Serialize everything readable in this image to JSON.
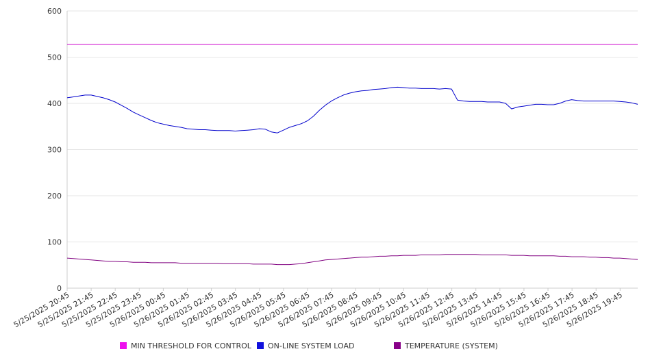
{
  "chart_data": {
    "type": "line",
    "title": "",
    "xlabel": "",
    "ylabel": "",
    "ylim": [
      0,
      600
    ],
    "yticks": [
      0,
      100,
      200,
      300,
      400,
      500,
      600
    ],
    "x_ticks": [
      "5/25/2025 20:45",
      "5/25/2025 21:45",
      "5/25/2025 22:45",
      "5/25/2025 23:45",
      "5/26/2025 00:45",
      "5/26/2025 01:45",
      "5/26/2025 02:45",
      "5/26/2025 03:45",
      "5/26/2025 04:45",
      "5/26/2025 05:45",
      "5/26/2025 06:45",
      "5/26/2025 07:45",
      "5/26/2025 08:45",
      "5/26/2025 09:45",
      "5/26/2025 10:45",
      "5/26/2025 11:45",
      "5/26/2025 12:45",
      "5/26/2025 13:45",
      "5/26/2025 14:45",
      "5/26/2025 15:45",
      "5/26/2025 16:45",
      "5/26/2025 17:45",
      "5/26/2025 18:45",
      "5/26/2025 19:45"
    ],
    "x": [
      "20:45",
      "21:00",
      "21:15",
      "21:30",
      "21:45",
      "22:00",
      "22:15",
      "22:30",
      "22:45",
      "23:00",
      "23:15",
      "23:30",
      "23:45",
      "00:00",
      "00:15",
      "00:30",
      "00:45",
      "01:00",
      "01:15",
      "01:30",
      "01:45",
      "02:00",
      "02:15",
      "02:30",
      "02:45",
      "03:00",
      "03:15",
      "03:30",
      "03:45",
      "04:00",
      "04:15",
      "04:30",
      "04:45",
      "05:00",
      "05:15",
      "05:30",
      "05:45",
      "06:00",
      "06:15",
      "06:30",
      "06:45",
      "07:00",
      "07:15",
      "07:30",
      "07:45",
      "08:00",
      "08:15",
      "08:30",
      "08:45",
      "09:00",
      "09:15",
      "09:30",
      "09:45",
      "10:00",
      "10:15",
      "10:30",
      "10:45",
      "11:00",
      "11:15",
      "11:30",
      "11:45",
      "12:00",
      "12:15",
      "12:30",
      "12:45",
      "13:00",
      "13:15",
      "13:30",
      "13:45",
      "14:00",
      "14:15",
      "14:30",
      "14:45",
      "15:00",
      "15:15",
      "15:30",
      "15:45",
      "16:00",
      "16:15",
      "16:30",
      "16:45",
      "17:00",
      "17:15",
      "17:30",
      "17:45",
      "18:00",
      "18:15",
      "18:30",
      "18:45",
      "19:00",
      "19:15",
      "19:30",
      "19:45",
      "20:00",
      "20:15",
      "20:30"
    ],
    "series": [
      {
        "name": "MIN THRESHOLD FOR CONTROL",
        "color": "#cc00cc",
        "values": [
          528,
          528,
          528,
          528,
          528,
          528,
          528,
          528,
          528,
          528,
          528,
          528,
          528,
          528,
          528,
          528,
          528,
          528,
          528,
          528,
          528,
          528,
          528,
          528,
          528,
          528,
          528,
          528,
          528,
          528,
          528,
          528,
          528,
          528,
          528,
          528,
          528,
          528,
          528,
          528,
          528,
          528,
          528,
          528,
          528,
          528,
          528,
          528,
          528,
          528,
          528,
          528,
          528,
          528,
          528,
          528,
          528,
          528,
          528,
          528,
          528,
          528,
          528,
          528,
          528,
          528,
          528,
          528,
          528,
          528,
          528,
          528,
          528,
          528,
          528,
          528,
          528,
          528,
          528,
          528,
          528,
          528,
          528,
          528,
          528,
          528,
          528,
          528,
          528,
          528,
          528,
          528,
          528,
          528,
          528,
          528
        ]
      },
      {
        "name": "ON-LINE SYSTEM LOAD",
        "color": "#0000cc",
        "values": [
          412,
          414,
          416,
          418,
          418,
          415,
          412,
          408,
          403,
          396,
          389,
          381,
          375,
          369,
          363,
          358,
          355,
          352,
          350,
          348,
          345,
          344,
          343,
          343,
          342,
          341,
          341,
          341,
          340,
          341,
          342,
          343,
          345,
          344,
          338,
          336,
          342,
          348,
          352,
          356,
          362,
          372,
          385,
          396,
          405,
          412,
          418,
          422,
          425,
          427,
          428,
          430,
          431,
          432,
          434,
          435,
          434,
          433,
          433,
          432,
          432,
          432,
          431,
          432,
          431,
          407,
          405,
          404,
          404,
          404,
          403,
          403,
          403,
          400,
          388,
          392,
          394,
          396,
          398,
          398,
          397,
          397,
          400,
          405,
          408,
          406,
          405,
          405,
          405,
          405,
          405,
          405,
          404,
          403,
          401,
          398
        ]
      },
      {
        "name": "TEMPERATURE (SYSTEM)",
        "color": "#800080",
        "values": [
          65,
          64,
          63,
          62,
          61,
          60,
          59,
          58,
          58,
          57,
          57,
          56,
          56,
          56,
          55,
          55,
          55,
          55,
          55,
          54,
          54,
          54,
          54,
          54,
          54,
          54,
          53,
          53,
          53,
          53,
          53,
          52,
          52,
          52,
          52,
          51,
          51,
          51,
          52,
          53,
          55,
          57,
          59,
          61,
          62,
          63,
          64,
          65,
          66,
          67,
          67,
          68,
          69,
          69,
          70,
          70,
          71,
          71,
          71,
          72,
          72,
          72,
          72,
          73,
          73,
          73,
          73,
          73,
          73,
          72,
          72,
          72,
          72,
          72,
          71,
          71,
          71,
          70,
          70,
          70,
          70,
          70,
          69,
          69,
          68,
          68,
          68,
          67,
          67,
          66,
          66,
          65,
          65,
          64,
          63,
          62
        ]
      }
    ],
    "legend_position": "bottom",
    "grid": true
  }
}
